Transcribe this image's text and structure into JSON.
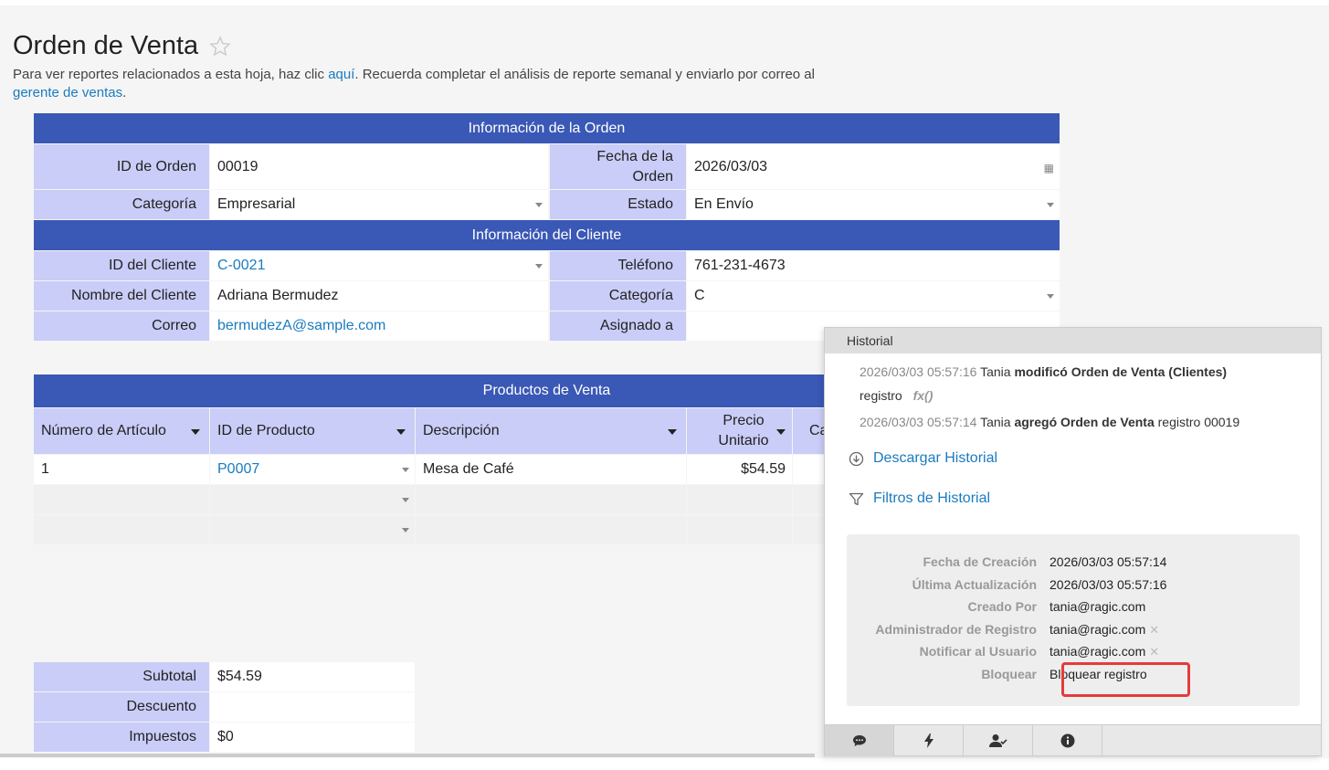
{
  "page": {
    "title": "Orden de Venta",
    "desc_part1": "Para ver reportes relacionados a esta hoja, haz clic ",
    "desc_link1": "aquí",
    "desc_part2": ". Recuerda completar el análisis de reporte semanal y enviarlo por correo al ",
    "desc_link2": "gerente de ventas",
    "desc_part3": "."
  },
  "order_info": {
    "header": "Información de la Orden",
    "id_label": "ID de Orden",
    "id_value": "00019",
    "date_label": "Fecha de la Orden",
    "date_value": "2026/03/03",
    "category_label": "Categoría",
    "category_value": "Empresarial",
    "status_label": "Estado",
    "status_value": "En Envío"
  },
  "client_info": {
    "header": "Información del Cliente",
    "id_label": "ID del Cliente",
    "id_value": "C-0021",
    "phone_label": "Teléfono",
    "phone_value": "761-231-4673",
    "name_label": "Nombre del Cliente",
    "name_value": "Adriana Bermudez",
    "category_label": "Categoría",
    "category_value": "C",
    "email_label": "Correo",
    "email_value": "bermudezA@sample.com",
    "assigned_label": "Asignado a",
    "assigned_value": ""
  },
  "products": {
    "header": "Productos de Venta",
    "columns": [
      "Número de Artículo",
      "ID de Producto",
      "Descripción",
      "Precio Unitario",
      "Ca"
    ],
    "rows": [
      {
        "item": "1",
        "product_id": "P0007",
        "description": "Mesa de Café",
        "price": "$54.59"
      }
    ]
  },
  "totals": {
    "subtotal_label": "Subtotal",
    "subtotal_value": "$54.59",
    "discount_label": "Descuento",
    "discount_value": "",
    "tax_label": "Impuestos",
    "tax_value": "$0"
  },
  "history": {
    "title": "Historial",
    "entry1_ts": "2026/03/03 05:57:16",
    "entry1_user": "Tania",
    "entry1_action": "modificó Orden de Venta (Clientes)",
    "entry1_field": "registro",
    "entry1_fx": "fx()",
    "entry2_ts": "2026/03/03 05:57:14",
    "entry2_user": "Tania",
    "entry2_action": "agregó Orden de Venta",
    "entry2_rest": "registro 00019",
    "download_label": "Descargar Historial",
    "filters_label": "Filtros de Historial",
    "info": [
      {
        "key": "Fecha de Creación",
        "value": "2026/03/03 05:57:14"
      },
      {
        "key": "Última Actualización",
        "value": "2026/03/03 05:57:16"
      },
      {
        "key": "Creado Por",
        "value": "tania@ragic.com"
      },
      {
        "key": "Administrador de Registro",
        "value": "tania@ragic.com"
      },
      {
        "key": "Notificar al Usuario",
        "value": "tania@ragic.com"
      },
      {
        "key": "Bloquear",
        "value": "Bloquear registro"
      }
    ],
    "tab_icons": [
      "comment-icon",
      "lightning-icon",
      "user-check-icon",
      "info-icon"
    ]
  },
  "colors": {
    "section_header": "#3a58b5",
    "label_bg": "#c9cdf7",
    "link": "#1a7bbf",
    "highlight": "#e53b3b"
  }
}
